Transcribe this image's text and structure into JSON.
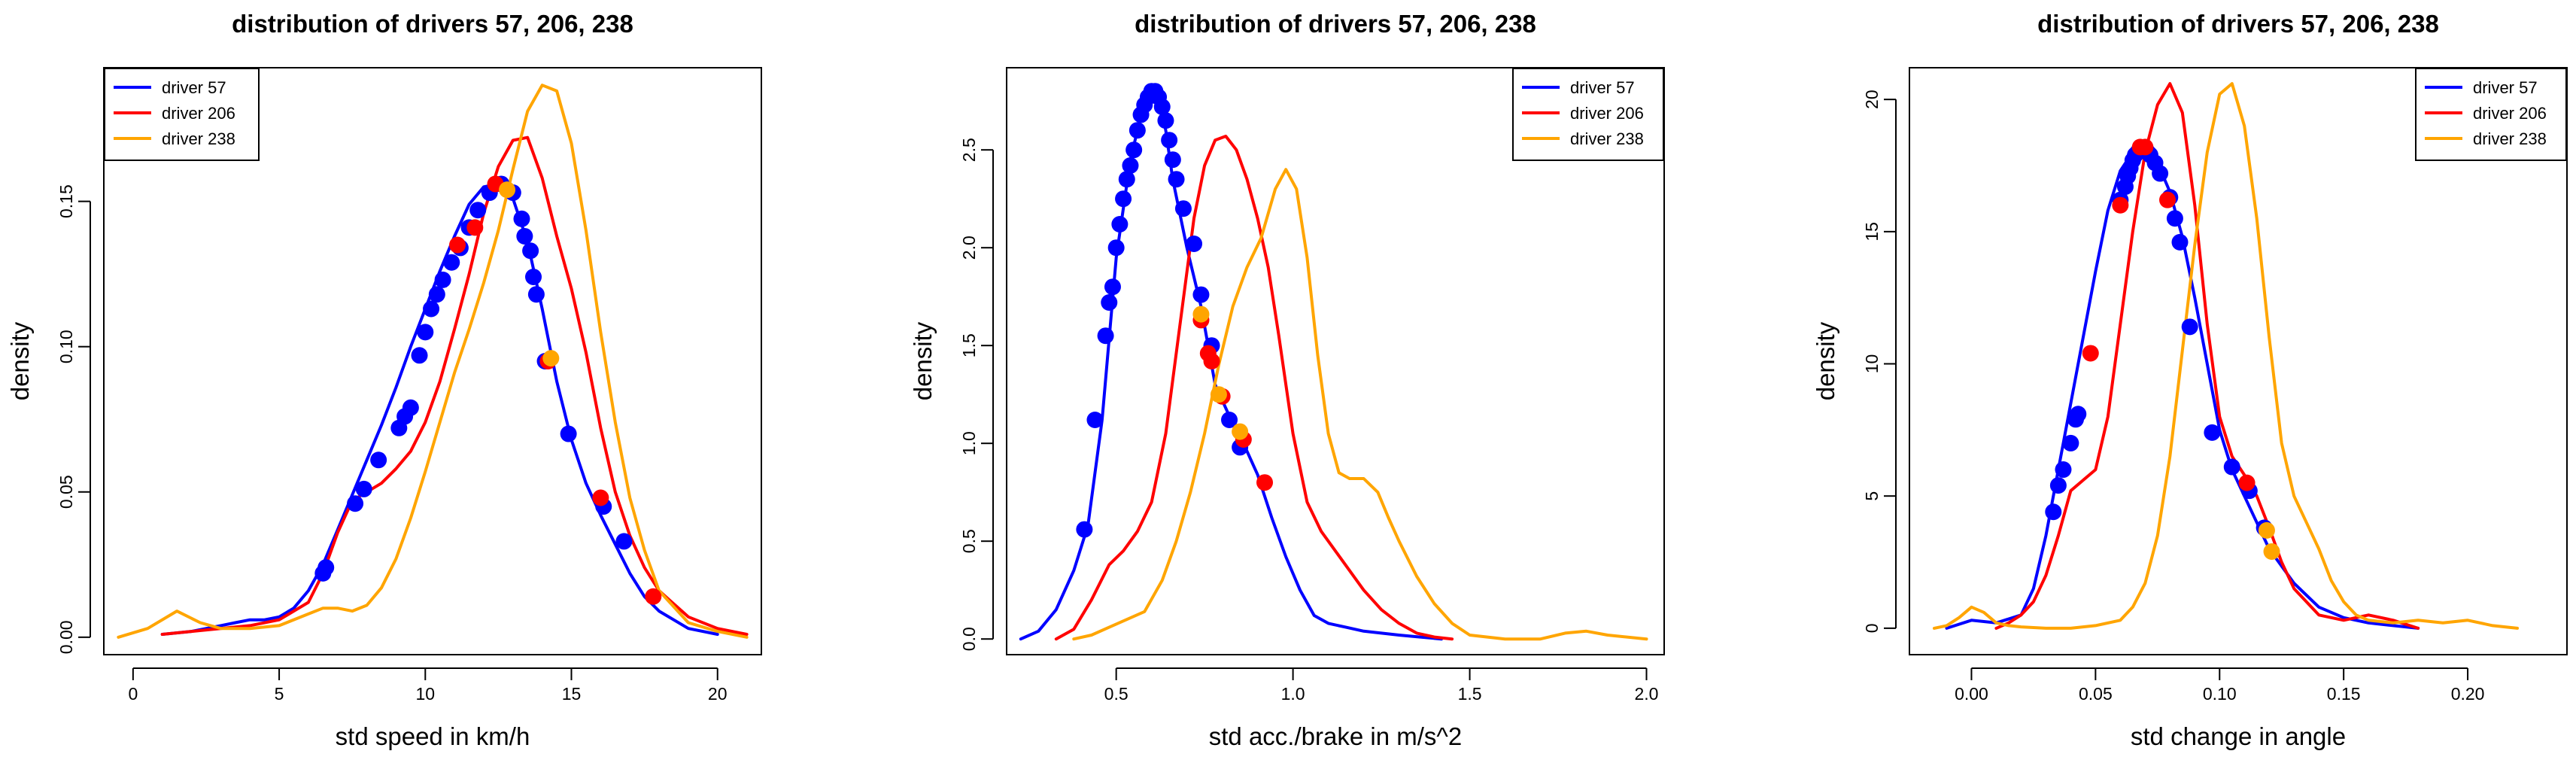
{
  "colors": {
    "driver_57": "#0000ff",
    "driver_206": "#ff0000",
    "driver_238": "#ffa500"
  },
  "chart_data": [
    {
      "type": "line",
      "title": "distribution of drivers 57, 206, 238",
      "xlabel": "std speed in km/h",
      "ylabel": "density",
      "xlim": [
        -1,
        21.5
      ],
      "ylim": [
        -0.006,
        0.196
      ],
      "xticks": [
        0,
        5,
        10,
        15,
        20
      ],
      "xtick_labels": [
        "0",
        "5",
        "10",
        "15",
        "20"
      ],
      "yticks": [
        0.0,
        0.05,
        0.1,
        0.15
      ],
      "ytick_labels": [
        "0.00",
        "0.05",
        "0.10",
        "0.15"
      ],
      "legend_position": "top-left",
      "series": [
        {
          "name": "driver 57",
          "color": "#0000ff",
          "x": [
            1,
            2,
            3,
            3.5,
            4,
            4.5,
            5,
            5.5,
            6,
            6.5,
            7,
            7.5,
            8,
            8.5,
            9,
            9.5,
            10,
            10.5,
            11,
            11.5,
            12,
            12.5,
            13,
            13.5,
            14,
            14.5,
            15,
            15.5,
            16,
            16.5,
            17,
            17.5,
            18,
            18.5,
            19,
            20
          ],
          "y": [
            0.001,
            0.002,
            0.004,
            0.005,
            0.006,
            0.006,
            0.007,
            0.01,
            0.016,
            0.025,
            0.037,
            0.049,
            0.061,
            0.073,
            0.086,
            0.1,
            0.113,
            0.126,
            0.138,
            0.149,
            0.155,
            0.156,
            0.151,
            0.136,
            0.113,
            0.088,
            0.068,
            0.053,
            0.042,
            0.032,
            0.022,
            0.014,
            0.009,
            0.006,
            0.003,
            0.001
          ]
        },
        {
          "name": "driver 206",
          "color": "#ff0000",
          "x": [
            1,
            2,
            3,
            4,
            5,
            6,
            6.5,
            7,
            7.5,
            8,
            8.5,
            9,
            9.5,
            10,
            10.5,
            11,
            11.5,
            12,
            12.5,
            13,
            13.5,
            14,
            14.5,
            15,
            15.5,
            16,
            16.5,
            17,
            17.5,
            18,
            19,
            20,
            21
          ],
          "y": [
            0.001,
            0.002,
            0.003,
            0.004,
            0.006,
            0.012,
            0.022,
            0.036,
            0.047,
            0.05,
            0.053,
            0.058,
            0.064,
            0.074,
            0.088,
            0.106,
            0.125,
            0.146,
            0.162,
            0.171,
            0.172,
            0.158,
            0.138,
            0.12,
            0.098,
            0.072,
            0.05,
            0.035,
            0.024,
            0.016,
            0.007,
            0.003,
            0.001
          ]
        },
        {
          "name": "driver 238",
          "color": "#ffa500",
          "x": [
            -0.5,
            0.5,
            1.5,
            2.3,
            3,
            4,
            5,
            6,
            6.5,
            7,
            7.5,
            8,
            8.5,
            9,
            9.5,
            10,
            10.5,
            11,
            11.5,
            12,
            12.5,
            13,
            13.5,
            14,
            14.5,
            15,
            15.5,
            16,
            16.5,
            17,
            17.5,
            18,
            19,
            20,
            21
          ],
          "y": [
            0.0,
            0.003,
            0.009,
            0.005,
            0.003,
            0.003,
            0.004,
            0.008,
            0.01,
            0.01,
            0.009,
            0.011,
            0.017,
            0.027,
            0.041,
            0.057,
            0.074,
            0.091,
            0.106,
            0.122,
            0.14,
            0.161,
            0.181,
            0.19,
            0.188,
            0.17,
            0.14,
            0.105,
            0.074,
            0.048,
            0.03,
            0.016,
            0.005,
            0.002,
            0.0
          ]
        }
      ],
      "points": [
        {
          "series": "driver 57",
          "color": "#0000ff",
          "x": [
            6.5,
            6.6,
            7.6,
            7.9,
            8.4,
            9.1,
            9.3,
            9.5,
            9.8,
            10.0,
            10.2,
            10.4,
            10.6,
            10.9,
            11.2,
            11.5,
            11.8,
            12.2,
            12.6,
            13.0,
            13.3,
            13.4,
            13.6,
            13.7,
            13.8,
            14.1,
            14.9,
            16.1,
            16.8
          ],
          "y": [
            0.022,
            0.024,
            0.046,
            0.051,
            0.061,
            0.072,
            0.076,
            0.079,
            0.097,
            0.105,
            0.113,
            0.118,
            0.123,
            0.129,
            0.134,
            0.141,
            0.147,
            0.153,
            0.156,
            0.153,
            0.144,
            0.138,
            0.133,
            0.124,
            0.118,
            0.095,
            0.07,
            0.045,
            0.033
          ]
        },
        {
          "series": "driver 206",
          "color": "#ff0000",
          "x": [
            11.1,
            11.7,
            12.4,
            14.2,
            16.0,
            17.8
          ],
          "y": [
            0.135,
            0.141,
            0.156,
            0.095,
            0.048,
            0.014
          ]
        },
        {
          "series": "driver 238",
          "color": "#ffa500",
          "x": [
            12.8,
            14.3
          ],
          "y": [
            0.154,
            0.096
          ]
        }
      ]
    },
    {
      "type": "line",
      "title": "distribution of drivers 57, 206, 238",
      "xlabel": "std acc./brake in m/s^2",
      "ylabel": "density",
      "xlim": [
        0.19,
        2.05
      ],
      "ylim": [
        -0.08,
        2.92
      ],
      "xticks": [
        0.5,
        1.0,
        1.5,
        2.0
      ],
      "xtick_labels": [
        "0.5",
        "1.0",
        "1.5",
        "2.0"
      ],
      "yticks": [
        0.0,
        0.5,
        1.0,
        1.5,
        2.0,
        2.5
      ],
      "ytick_labels": [
        "0.0",
        "0.5",
        "1.0",
        "1.5",
        "2.0",
        "2.5"
      ],
      "legend_position": "top-right",
      "series": [
        {
          "name": "driver 57",
          "color": "#0000ff",
          "x": [
            0.23,
            0.28,
            0.33,
            0.38,
            0.42,
            0.46,
            0.5,
            0.54,
            0.58,
            0.6,
            0.62,
            0.64,
            0.66,
            0.7,
            0.74,
            0.78,
            0.82,
            0.86,
            0.9,
            0.94,
            0.98,
            1.02,
            1.06,
            1.1,
            1.15,
            1.2,
            1.25,
            1.3,
            1.36,
            1.42
          ],
          "y": [
            0.0,
            0.04,
            0.15,
            0.35,
            0.58,
            1.12,
            1.95,
            2.45,
            2.75,
            2.8,
            2.78,
            2.6,
            2.35,
            2.0,
            1.7,
            1.3,
            1.14,
            1.0,
            0.84,
            0.62,
            0.42,
            0.25,
            0.12,
            0.08,
            0.06,
            0.04,
            0.03,
            0.02,
            0.01,
            0.0
          ]
        },
        {
          "name": "driver 206",
          "color": "#ff0000",
          "x": [
            0.33,
            0.38,
            0.43,
            0.48,
            0.52,
            0.56,
            0.6,
            0.64,
            0.68,
            0.72,
            0.75,
            0.78,
            0.81,
            0.84,
            0.87,
            0.9,
            0.93,
            0.96,
            1.0,
            1.04,
            1.08,
            1.12,
            1.16,
            1.2,
            1.25,
            1.3,
            1.35,
            1.4,
            1.45
          ],
          "y": [
            0.0,
            0.05,
            0.2,
            0.38,
            0.45,
            0.55,
            0.7,
            1.05,
            1.6,
            2.15,
            2.42,
            2.55,
            2.57,
            2.5,
            2.35,
            2.15,
            1.9,
            1.55,
            1.05,
            0.7,
            0.55,
            0.45,
            0.35,
            0.25,
            0.15,
            0.08,
            0.03,
            0.01,
            0.0
          ]
        },
        {
          "name": "driver 238",
          "color": "#ffa500",
          "x": [
            0.38,
            0.43,
            0.48,
            0.53,
            0.58,
            0.63,
            0.67,
            0.71,
            0.75,
            0.79,
            0.83,
            0.87,
            0.91,
            0.95,
            0.98,
            1.01,
            1.04,
            1.07,
            1.1,
            1.13,
            1.16,
            1.2,
            1.24,
            1.27,
            1.3,
            1.35,
            1.4,
            1.45,
            1.5,
            1.6,
            1.7,
            1.77,
            1.83,
            1.89,
            2.0
          ],
          "y": [
            0.0,
            0.02,
            0.06,
            0.1,
            0.14,
            0.3,
            0.5,
            0.75,
            1.05,
            1.4,
            1.7,
            1.9,
            2.05,
            2.3,
            2.4,
            2.3,
            1.95,
            1.45,
            1.05,
            0.85,
            0.82,
            0.82,
            0.75,
            0.62,
            0.5,
            0.32,
            0.18,
            0.08,
            0.02,
            0.0,
            0.0,
            0.03,
            0.04,
            0.02,
            0.0
          ]
        }
      ],
      "points": [
        {
          "series": "driver 57",
          "color": "#0000ff",
          "x": [
            0.41,
            0.44,
            0.47,
            0.48,
            0.49,
            0.5,
            0.51,
            0.52,
            0.53,
            0.54,
            0.55,
            0.56,
            0.57,
            0.58,
            0.59,
            0.6,
            0.61,
            0.62,
            0.63,
            0.64,
            0.65,
            0.66,
            0.67,
            0.69,
            0.72,
            0.74,
            0.77,
            0.82,
            0.85
          ],
          "y": [
            0.56,
            1.12,
            1.55,
            1.72,
            1.8,
            2.0,
            2.12,
            2.25,
            2.35,
            2.42,
            2.5,
            2.6,
            2.68,
            2.73,
            2.77,
            2.8,
            2.8,
            2.77,
            2.72,
            2.65,
            2.55,
            2.45,
            2.35,
            2.2,
            2.02,
            1.76,
            1.5,
            1.12,
            0.98
          ]
        },
        {
          "series": "driver 206",
          "color": "#ff0000",
          "x": [
            0.74,
            0.76,
            0.77,
            0.8,
            0.86,
            0.92
          ],
          "y": [
            1.63,
            1.46,
            1.42,
            1.24,
            1.02,
            0.8
          ]
        },
        {
          "series": "driver 238",
          "color": "#ffa500",
          "x": [
            0.74,
            0.79,
            0.85
          ],
          "y": [
            1.66,
            1.25,
            1.06
          ]
        }
      ]
    },
    {
      "type": "line",
      "title": "distribution of drivers 57, 206, 238",
      "xlabel": "std change in angle",
      "ylabel": "density",
      "xlim": [
        -0.025,
        0.24
      ],
      "ylim": [
        -1.0,
        21.2
      ],
      "xticks": [
        0.0,
        0.05,
        0.1,
        0.15,
        0.2
      ],
      "xtick_labels": [
        "0.00",
        "0.05",
        "0.10",
        "0.15",
        "0.20"
      ],
      "yticks": [
        0,
        5,
        10,
        15,
        20
      ],
      "ytick_labels": [
        "0",
        "5",
        "10",
        "15",
        "20"
      ],
      "legend_position": "top-right",
      "series": [
        {
          "name": "driver 57",
          "color": "#0000ff",
          "x": [
            -0.01,
            0.0,
            0.01,
            0.02,
            0.025,
            0.03,
            0.035,
            0.04,
            0.045,
            0.05,
            0.055,
            0.06,
            0.065,
            0.07,
            0.075,
            0.08,
            0.085,
            0.09,
            0.095,
            0.1,
            0.105,
            0.11,
            0.115,
            0.12,
            0.13,
            0.14,
            0.15,
            0.16,
            0.17,
            0.18
          ],
          "y": [
            0.0,
            0.3,
            0.2,
            0.5,
            1.5,
            3.5,
            6.0,
            8.5,
            11.0,
            13.5,
            15.8,
            17.3,
            18.0,
            18.2,
            17.6,
            16.5,
            14.8,
            12.5,
            10.0,
            7.5,
            6.0,
            5.0,
            4.0,
            3.0,
            1.7,
            0.8,
            0.4,
            0.2,
            0.1,
            0.0
          ]
        },
        {
          "name": "driver 206",
          "color": "#ff0000",
          "x": [
            0.01,
            0.015,
            0.02,
            0.025,
            0.03,
            0.035,
            0.04,
            0.045,
            0.05,
            0.055,
            0.06,
            0.065,
            0.07,
            0.075,
            0.08,
            0.085,
            0.09,
            0.095,
            0.1,
            0.105,
            0.11,
            0.115,
            0.12,
            0.125,
            0.13,
            0.14,
            0.15,
            0.16,
            0.17,
            0.18
          ],
          "y": [
            0.0,
            0.2,
            0.5,
            1.0,
            2.0,
            3.5,
            5.2,
            5.6,
            6.0,
            8.0,
            11.5,
            15.0,
            18.0,
            19.8,
            20.6,
            19.5,
            16.0,
            11.5,
            8.0,
            6.5,
            5.8,
            5.0,
            3.8,
            2.5,
            1.5,
            0.5,
            0.3,
            0.5,
            0.3,
            0.0
          ]
        },
        {
          "name": "driver 238",
          "color": "#ffa500",
          "x": [
            -0.015,
            -0.01,
            -0.005,
            0.0,
            0.005,
            0.01,
            0.015,
            0.02,
            0.03,
            0.04,
            0.05,
            0.06,
            0.065,
            0.07,
            0.075,
            0.08,
            0.085,
            0.09,
            0.095,
            0.1,
            0.105,
            0.11,
            0.115,
            0.12,
            0.125,
            0.13,
            0.135,
            0.14,
            0.145,
            0.15,
            0.155,
            0.16,
            0.17,
            0.18,
            0.19,
            0.2,
            0.21,
            0.22
          ],
          "y": [
            0.0,
            0.1,
            0.4,
            0.8,
            0.6,
            0.2,
            0.1,
            0.05,
            0.0,
            0.0,
            0.1,
            0.3,
            0.8,
            1.7,
            3.5,
            6.5,
            10.5,
            14.5,
            18.0,
            20.2,
            20.6,
            19.0,
            15.5,
            11.0,
            7.0,
            5.0,
            4.0,
            3.0,
            1.8,
            1.0,
            0.5,
            0.3,
            0.2,
            0.3,
            0.2,
            0.3,
            0.1,
            0.0
          ]
        }
      ],
      "points": [
        {
          "series": "driver 57",
          "color": "#0000ff",
          "x": [
            0.033,
            0.035,
            0.037,
            0.04,
            0.042,
            0.043,
            0.06,
            0.062,
            0.063,
            0.064,
            0.065,
            0.066,
            0.067,
            0.068,
            0.07,
            0.071,
            0.072,
            0.074,
            0.076,
            0.08,
            0.082,
            0.084,
            0.088,
            0.097,
            0.105,
            0.112,
            0.118
          ],
          "y": [
            4.4,
            5.4,
            6.0,
            7.0,
            7.9,
            8.1,
            16.2,
            16.7,
            17.1,
            17.4,
            17.7,
            17.9,
            18.0,
            18.1,
            18.1,
            18.0,
            17.9,
            17.6,
            17.2,
            16.3,
            15.5,
            14.6,
            11.4,
            7.4,
            6.1,
            5.2,
            3.8
          ]
        },
        {
          "series": "driver 206",
          "color": "#ff0000",
          "x": [
            0.048,
            0.06,
            0.068,
            0.07,
            0.079,
            0.111
          ],
          "y": [
            10.4,
            16.0,
            18.2,
            18.2,
            16.2,
            5.5
          ]
        },
        {
          "series": "driver 238",
          "color": "#ffa500",
          "x": [
            0.119,
            0.121
          ],
          "y": [
            3.7,
            2.9
          ]
        }
      ]
    }
  ]
}
